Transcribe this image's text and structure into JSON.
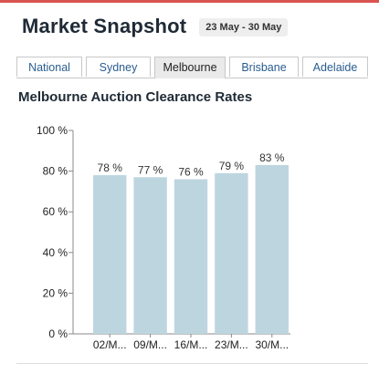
{
  "header": {
    "title": "Market Snapshot",
    "date_range": "23 May - 30 May"
  },
  "tabs": [
    {
      "label": "National",
      "active": false
    },
    {
      "label": "Sydney",
      "active": false
    },
    {
      "label": "Melbourne",
      "active": true
    },
    {
      "label": "Brisbane",
      "active": false
    },
    {
      "label": "Adelaide",
      "active": false
    }
  ],
  "section": {
    "title": "Melbourne Auction Clearance Rates"
  },
  "chart_data": {
    "type": "bar",
    "categories": [
      "02/M...",
      "09/M...",
      "16/M...",
      "23/M...",
      "30/M..."
    ],
    "values": [
      78,
      77,
      76,
      79,
      83
    ],
    "value_labels": [
      "78 %",
      "77 %",
      "76 %",
      "79 %",
      "83 %"
    ],
    "y_ticks": [
      "0 %",
      "20 %",
      "40 %",
      "60 %",
      "80 %",
      "100 %"
    ],
    "ylim": [
      0,
      100
    ],
    "bar_color": "#bdd5df",
    "title": "",
    "xlabel": "",
    "ylabel": ""
  }
}
